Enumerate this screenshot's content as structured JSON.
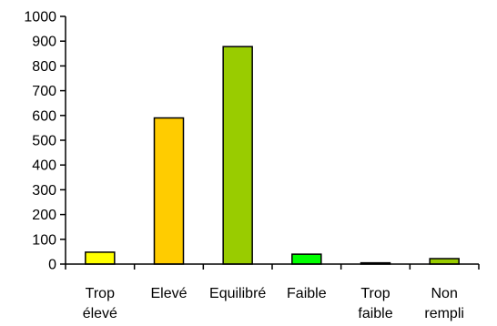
{
  "chart_data": {
    "type": "bar",
    "title": "",
    "xlabel": "",
    "ylabel": "",
    "ylim": [
      0,
      1000
    ],
    "yticks": [
      0,
      100,
      200,
      300,
      400,
      500,
      600,
      700,
      800,
      900,
      1000
    ],
    "grid": false,
    "legend": "none",
    "categories": [
      [
        "Trop",
        "élevé"
      ],
      [
        "Elevé"
      ],
      [
        "Equilibré"
      ],
      [
        "Faible"
      ],
      [
        "Trop",
        "faible"
      ],
      [
        "Non",
        "rempli"
      ]
    ],
    "values": [
      48,
      590,
      878,
      40,
      5,
      22
    ],
    "colors": [
      "#ffff00",
      "#ffcc00",
      "#99cc00",
      "#00ff00",
      "#339966",
      "#99cc00"
    ]
  }
}
